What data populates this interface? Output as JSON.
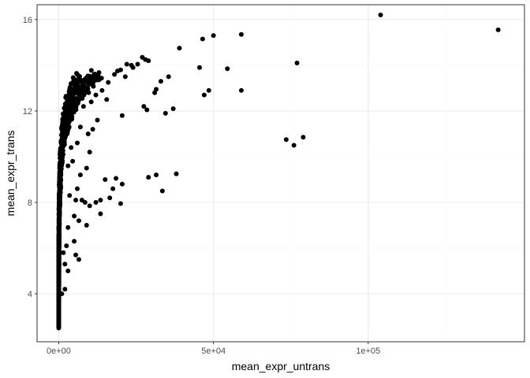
{
  "chart_data": {
    "type": "scatter",
    "title": "",
    "xlabel": "mean_expr_untrans",
    "ylabel": "mean_expr_trans",
    "xlim": [
      -7000,
      150500
    ],
    "ylim": [
      1.9,
      16.65
    ],
    "x_ticks": [
      0,
      50000,
      100000
    ],
    "x_tick_labels": [
      "0e+00",
      "5e+04",
      "1e+05"
    ],
    "y_ticks": [
      4,
      8,
      12,
      16
    ],
    "y_tick_labels": [
      "4",
      "8",
      "12",
      "16"
    ],
    "grid": true,
    "point_color": "#000000",
    "curve_note": "dense cloud approximately follows mean_expr_trans = log2(mean_expr_untrans)",
    "points": [
      {
        "x": 104000,
        "y": 16.2
      },
      {
        "x": 142000,
        "y": 15.55
      },
      {
        "x": 77000,
        "y": 14.1
      },
      {
        "x": 73500,
        "y": 10.75
      },
      {
        "x": 76000,
        "y": 10.5
      },
      {
        "x": 79000,
        "y": 10.85
      },
      {
        "x": 59000,
        "y": 15.35
      },
      {
        "x": 59000,
        "y": 12.9
      },
      {
        "x": 54500,
        "y": 13.85
      },
      {
        "x": 50000,
        "y": 15.3
      },
      {
        "x": 46500,
        "y": 15.15
      },
      {
        "x": 45500,
        "y": 13.9
      },
      {
        "x": 47000,
        "y": 12.7
      },
      {
        "x": 48500,
        "y": 12.9
      },
      {
        "x": 39000,
        "y": 14.75
      },
      {
        "x": 38000,
        "y": 9.25
      },
      {
        "x": 37000,
        "y": 12.1
      },
      {
        "x": 35500,
        "y": 13.5
      },
      {
        "x": 34500,
        "y": 11.9
      },
      {
        "x": 33000,
        "y": 13.3
      },
      {
        "x": 31000,
        "y": 12.8
      },
      {
        "x": 31500,
        "y": 12.95
      },
      {
        "x": 31500,
        "y": 9.2
      },
      {
        "x": 29000,
        "y": 9.1
      },
      {
        "x": 33500,
        "y": 8.5
      },
      {
        "x": 29000,
        "y": 14.2
      },
      {
        "x": 28000,
        "y": 14.25
      },
      {
        "x": 27000,
        "y": 14.35
      },
      {
        "x": 27500,
        "y": 12.2
      },
      {
        "x": 28500,
        "y": 12.05
      },
      {
        "x": 25500,
        "y": 14.05
      },
      {
        "x": 24000,
        "y": 13.9
      },
      {
        "x": 22000,
        "y": 14.05
      },
      {
        "x": 21500,
        "y": 13.5
      },
      {
        "x": 20000,
        "y": 13.8
      },
      {
        "x": 20500,
        "y": 11.8
      },
      {
        "x": 20500,
        "y": 8.8
      },
      {
        "x": 20000,
        "y": 7.95
      },
      {
        "x": 18500,
        "y": 9.05
      },
      {
        "x": 17500,
        "y": 8.6
      },
      {
        "x": 16500,
        "y": 8.2
      },
      {
        "x": 15000,
        "y": 9.0
      },
      {
        "x": 13500,
        "y": 8.1
      },
      {
        "x": 13500,
        "y": 7.5
      },
      {
        "x": 12000,
        "y": 8.0
      },
      {
        "x": 10000,
        "y": 7.85
      },
      {
        "x": 10000,
        "y": 10.2
      },
      {
        "x": 9000,
        "y": 9.5
      },
      {
        "x": 9500,
        "y": 11.0
      },
      {
        "x": 8500,
        "y": 8.0
      },
      {
        "x": 9000,
        "y": 7.0
      },
      {
        "x": 7000,
        "y": 9.2
      },
      {
        "x": 7500,
        "y": 8.1
      },
      {
        "x": 6500,
        "y": 7.2
      },
      {
        "x": 6000,
        "y": 8.6
      },
      {
        "x": 5500,
        "y": 8.1
      },
      {
        "x": 6500,
        "y": 5.5
      },
      {
        "x": 5500,
        "y": 5.7
      },
      {
        "x": 5000,
        "y": 7.4
      },
      {
        "x": 5000,
        "y": 6.3
      },
      {
        "x": 4500,
        "y": 9.8
      },
      {
        "x": 3500,
        "y": 8.3
      },
      {
        "x": 3000,
        "y": 6.9
      },
      {
        "x": 3000,
        "y": 5.0
      },
      {
        "x": 2500,
        "y": 6.1
      },
      {
        "x": 2000,
        "y": 5.3
      },
      {
        "x": 2000,
        "y": 4.2
      },
      {
        "x": 1500,
        "y": 5.8
      },
      {
        "x": 1000,
        "y": 4.0
      },
      {
        "x": 12500,
        "y": 11.6
      },
      {
        "x": 11000,
        "y": 11.2
      },
      {
        "x": 14000,
        "y": 12.9
      },
      {
        "x": 16000,
        "y": 13.25
      },
      {
        "x": 18000,
        "y": 13.6
      },
      {
        "x": 15500,
        "y": 12.5
      },
      {
        "x": 8000,
        "y": 12.2
      },
      {
        "x": 7000,
        "y": 11.3
      },
      {
        "x": 4000,
        "y": 10.4
      },
      {
        "x": 19000,
        "y": 13.75
      },
      {
        "x": 23500,
        "y": 14.0
      },
      {
        "x": 12000,
        "y": 12.7
      },
      {
        "x": 10500,
        "y": 12.4
      },
      {
        "x": 6000,
        "y": 10.6
      },
      {
        "x": 3000,
        "y": 9.6
      }
    ]
  }
}
